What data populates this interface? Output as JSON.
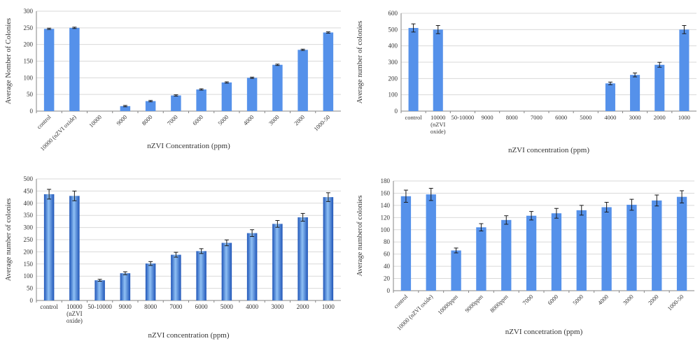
{
  "chart_data": [
    {
      "type": "bar",
      "ylabel": "Average Nomber of Colonies",
      "xlabel": "nZVI Concentration (ppm)",
      "ylim": [
        0,
        300
      ],
      "yticks": [
        0,
        50,
        100,
        150,
        200,
        250,
        300
      ],
      "grid": true,
      "bar_color": "#5591ea",
      "bar_style": "flat",
      "error_bars": true,
      "tick_rotation": -45,
      "categories": [
        "control",
        "10000 (nZVI oxide)",
        "10000",
        "9000",
        "8000",
        "7000",
        "6000",
        "5000",
        "4000",
        "3000",
        "2000",
        "1000-50"
      ],
      "values": [
        247,
        250,
        0,
        15,
        30,
        47,
        65,
        86,
        100,
        139,
        184,
        236
      ],
      "errors": [
        2,
        2,
        0,
        2,
        2,
        2,
        2,
        2,
        2,
        2,
        2,
        2
      ]
    },
    {
      "type": "bar",
      "ylabel": "Average  number of colonies",
      "xlabel": "nZVI concentration  (ppm)",
      "ylim": [
        0,
        600
      ],
      "yticks": [
        0,
        100,
        200,
        300,
        400,
        500,
        600
      ],
      "grid": true,
      "bar_color": "#5591ea",
      "bar_style": "flat",
      "error_bars": true,
      "tick_rotation": 0,
      "categories": [
        "control",
        "10000 (nZVI oxide)",
        "50-10000",
        "9000",
        "8000",
        "7000",
        "6000",
        "5000",
        "4000",
        "3000",
        "2000",
        "1000"
      ],
      "values": [
        510,
        500,
        0,
        0,
        0,
        0,
        0,
        0,
        170,
        222,
        284,
        500
      ],
      "errors": [
        25,
        25,
        0,
        0,
        0,
        0,
        0,
        0,
        8,
        12,
        15,
        25
      ]
    },
    {
      "type": "bar",
      "ylabel": "Average number of colonies",
      "xlabel": "nZVI concentration (ppm)",
      "ylim": [
        0,
        500
      ],
      "yticks": [
        0,
        50,
        100,
        150,
        200,
        250,
        300,
        350,
        400,
        450,
        500
      ],
      "grid": true,
      "bar_color": "#4e86d8",
      "bar_style": "gradient",
      "error_bars": true,
      "tick_rotation": 0,
      "categories": [
        "control",
        "10000 (nZVI oxide)",
        "50-10000",
        "9000",
        "8000",
        "7000",
        "6000",
        "5000",
        "4000",
        "3000",
        "2000",
        "1000"
      ],
      "values": [
        437,
        430,
        83,
        112,
        152,
        188,
        203,
        237,
        277,
        315,
        342,
        425
      ],
      "errors": [
        20,
        20,
        4,
        6,
        8,
        10,
        10,
        12,
        14,
        14,
        16,
        18
      ]
    },
    {
      "type": "bar",
      "ylabel": "Average numberof colonies",
      "xlabel": "nZVI concetration (ppm)",
      "ylim": [
        0,
        180
      ],
      "yticks": [
        0,
        20,
        40,
        60,
        80,
        100,
        120,
        140,
        160,
        180
      ],
      "grid": true,
      "bar_color": "#5591ea",
      "bar_style": "flat",
      "error_bars": true,
      "tick_rotation": -45,
      "categories": [
        "control",
        "10000 (nZVI oxide)",
        "10000ppm",
        "9000ppm",
        "8000ppm",
        "7000",
        "6000",
        "5000",
        "4000",
        "3000",
        "2000",
        "1000-50"
      ],
      "values": [
        155,
        158,
        66,
        104,
        116,
        123,
        127,
        132,
        137,
        141,
        148,
        154
      ],
      "errors": [
        10,
        10,
        4,
        6,
        7,
        7,
        8,
        8,
        8,
        9,
        9,
        10
      ]
    }
  ]
}
